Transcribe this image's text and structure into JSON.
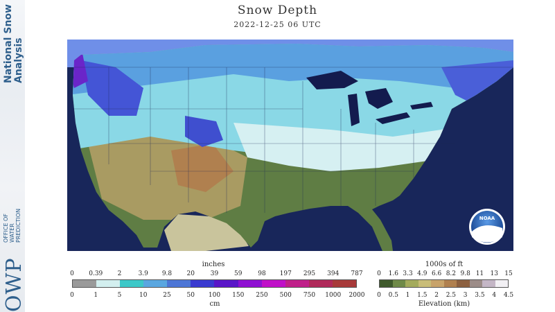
{
  "title": "Snow Depth",
  "datetime": "2022-12-25 06 UTC",
  "branding": {
    "line1": "National Snow",
    "line2": "Analysis",
    "office_line1": "OFFICE OF",
    "office_line2": "WATER",
    "office_line3": "PREDICTION",
    "mark": "OWP"
  },
  "noaa_logo": "NOAA",
  "snow_legend": {
    "top_unit": "inches",
    "bottom_unit": "cm",
    "top_ticks": [
      "0",
      "0.39",
      "2",
      "3.9",
      "9.8",
      "20",
      "39",
      "59",
      "98",
      "197",
      "295",
      "394",
      "787"
    ],
    "bottom_ticks": [
      "0",
      "1",
      "5",
      "10",
      "25",
      "50",
      "100",
      "150",
      "250",
      "500",
      "750",
      "1000",
      "2000"
    ],
    "colors": [
      "#9a9a9a",
      "#d3efef",
      "#3cc8c8",
      "#5aa7e0",
      "#4d76d6",
      "#3a3ad0",
      "#5a16c8",
      "#8f10d2",
      "#c010c8",
      "#c0208a",
      "#b02a5a",
      "#a83a3a"
    ]
  },
  "elevation_legend": {
    "top_unit": "1000s of ft",
    "bottom_unit": "Elevation (km)",
    "top_ticks": [
      "0",
      "1.6",
      "3.3",
      "4.9",
      "6.6",
      "8.2",
      "9.8",
      "11",
      "13",
      "15"
    ],
    "bottom_ticks": [
      "0",
      "0.5",
      "1",
      "1.5",
      "2",
      "2.5",
      "3",
      "3.5",
      "4",
      "4.5"
    ],
    "colors": [
      "#3f5a2c",
      "#6f8a48",
      "#a4ab5c",
      "#c9bd78",
      "#c8a36a",
      "#b0804f",
      "#8c6040",
      "#9c8c88",
      "#c4b6c6",
      "#f2f0f4"
    ]
  }
}
